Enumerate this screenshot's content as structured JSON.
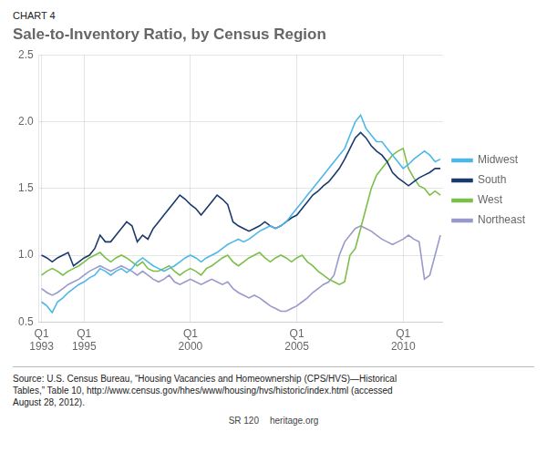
{
  "chart_data": {
    "type": "line",
    "title": "Sale-to-Inventory Ratio, by Census Region",
    "subtitle": "CHART 4",
    "annotations": [
      "Source: U.S. Census Bureau, “Housing Vacancies and Homeownership (CPS/HVS)—Historical\nTables,” Table 10, http://www.census.gov/hhes/www/housing/hvs/historic/index.html (accessed\nAugust 28, 2012).",
      "SR 120",
      "heritage.org"
    ],
    "categories": [
      "Q1\n1993",
      null,
      null,
      null,
      null,
      null,
      null,
      null,
      "Q1\n1995",
      null,
      null,
      null,
      null,
      null,
      null,
      null,
      null,
      null,
      null,
      null,
      null,
      null,
      null,
      null,
      null,
      null,
      null,
      null,
      "Q1\n2000",
      null,
      null,
      null,
      null,
      null,
      null,
      null,
      null,
      null,
      null,
      null,
      null,
      null,
      null,
      null,
      null,
      null,
      null,
      null,
      "Q1\n2005",
      null,
      null,
      null,
      null,
      null,
      null,
      null,
      null,
      null,
      null,
      null,
      null,
      null,
      null,
      null,
      null,
      null,
      null,
      null,
      "Q1\n2010",
      null,
      null,
      null,
      null,
      null,
      null,
      null
    ],
    "series": [
      {
        "name": "Midwest",
        "color": "#4db8e8",
        "values": [
          0.65,
          0.62,
          0.57,
          0.65,
          0.68,
          0.72,
          0.75,
          0.78,
          0.8,
          0.83,
          0.85,
          0.9,
          0.88,
          0.85,
          0.88,
          0.9,
          0.87,
          0.9,
          0.95,
          0.98,
          0.95,
          0.92,
          0.9,
          0.88,
          0.9,
          0.92,
          0.95,
          0.98,
          1.0,
          0.98,
          0.95,
          0.98,
          1.0,
          1.02,
          1.05,
          1.08,
          1.1,
          1.12,
          1.1,
          1.12,
          1.15,
          1.18,
          1.2,
          1.22,
          1.2,
          1.22,
          1.25,
          1.3,
          1.35,
          1.4,
          1.45,
          1.5,
          1.55,
          1.6,
          1.65,
          1.7,
          1.75,
          1.8,
          1.9,
          2.0,
          2.05,
          1.95,
          1.9,
          1.85,
          1.85,
          1.8,
          1.75,
          1.7,
          1.65,
          1.68,
          1.72,
          1.75,
          1.78,
          1.75,
          1.7,
          1.72
        ]
      },
      {
        "name": "South",
        "color": "#1a3a6e",
        "values": [
          1.0,
          0.98,
          0.95,
          0.98,
          1.0,
          1.02,
          0.92,
          0.95,
          0.98,
          1.0,
          1.05,
          1.15,
          1.1,
          1.1,
          1.15,
          1.2,
          1.25,
          1.22,
          1.1,
          1.15,
          1.12,
          1.2,
          1.25,
          1.3,
          1.35,
          1.4,
          1.45,
          1.42,
          1.38,
          1.35,
          1.3,
          1.35,
          1.4,
          1.45,
          1.42,
          1.38,
          1.25,
          1.22,
          1.2,
          1.18,
          1.2,
          1.22,
          1.25,
          1.22,
          1.2,
          1.22,
          1.25,
          1.28,
          1.3,
          1.35,
          1.4,
          1.45,
          1.48,
          1.52,
          1.55,
          1.6,
          1.65,
          1.72,
          1.8,
          1.88,
          1.92,
          1.88,
          1.82,
          1.78,
          1.75,
          1.7,
          1.62,
          1.58,
          1.55,
          1.52,
          1.55,
          1.58,
          1.6,
          1.62,
          1.65,
          1.65
        ]
      },
      {
        "name": "West",
        "color": "#7bbf4a",
        "values": [
          0.85,
          0.88,
          0.9,
          0.88,
          0.85,
          0.88,
          0.9,
          0.92,
          0.95,
          0.98,
          1.0,
          1.02,
          0.98,
          0.95,
          0.98,
          1.0,
          0.98,
          0.95,
          0.92,
          0.95,
          0.9,
          0.88,
          0.88,
          0.9,
          0.92,
          0.88,
          0.85,
          0.88,
          0.9,
          0.88,
          0.85,
          0.9,
          0.92,
          0.95,
          0.98,
          1.0,
          0.95,
          0.92,
          0.95,
          0.98,
          1.0,
          1.02,
          0.98,
          0.95,
          0.98,
          1.0,
          0.98,
          0.95,
          0.98,
          1.0,
          0.95,
          0.92,
          0.88,
          0.85,
          0.82,
          0.8,
          0.78,
          0.8,
          1.0,
          1.05,
          1.2,
          1.35,
          1.5,
          1.6,
          1.65,
          1.7,
          1.75,
          1.78,
          1.8,
          1.65,
          1.58,
          1.52,
          1.5,
          1.45,
          1.48,
          1.45
        ]
      },
      {
        "name": "Northeast",
        "color": "#9999cc",
        "values": [
          0.75,
          0.72,
          0.7,
          0.72,
          0.75,
          0.78,
          0.8,
          0.82,
          0.85,
          0.88,
          0.9,
          0.92,
          0.9,
          0.88,
          0.9,
          0.92,
          0.9,
          0.88,
          0.85,
          0.88,
          0.85,
          0.82,
          0.8,
          0.82,
          0.85,
          0.8,
          0.78,
          0.8,
          0.82,
          0.8,
          0.78,
          0.8,
          0.82,
          0.8,
          0.78,
          0.8,
          0.75,
          0.72,
          0.7,
          0.68,
          0.7,
          0.68,
          0.65,
          0.62,
          0.6,
          0.58,
          0.58,
          0.6,
          0.62,
          0.65,
          0.68,
          0.72,
          0.75,
          0.78,
          0.8,
          0.85,
          1.0,
          1.1,
          1.15,
          1.2,
          1.22,
          1.2,
          1.18,
          1.15,
          1.12,
          1.1,
          1.08,
          1.1,
          1.12,
          1.15,
          1.12,
          1.1,
          0.82,
          0.85,
          1.0,
          1.15
        ]
      }
    ],
    "ylim": [
      0.5,
      2.5
    ],
    "yticks": [
      0.5,
      {
        "value": 1,
        "label": "1.0"
      },
      1.5,
      {
        "value": 2,
        "label": "2.0"
      },
      2.5
    ],
    "grid": true,
    "legend": "right"
  }
}
